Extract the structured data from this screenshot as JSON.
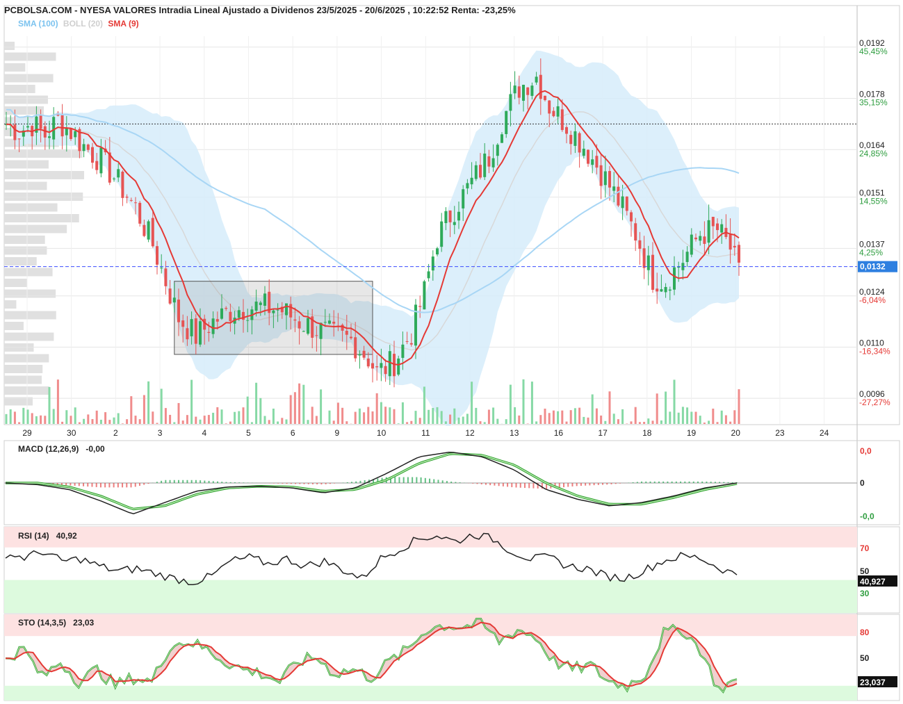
{
  "header": {
    "title": "PCBOLSA.COM - NYESA VALORES Intradia Lineal Ajustado a Dividenos 23/5/2025 - 20/6/2025 , 10:22:52 Renta: -23,25%",
    "legend": [
      {
        "label": "SMA (100)",
        "color": "#9fd2f2"
      },
      {
        "label": "BOLL (20)",
        "color": "#d7d7d7"
      },
      {
        "label": "SMA (9)",
        "color": "#e53935"
      }
    ]
  },
  "colors": {
    "up": "#2eaa5a",
    "down": "#e65454",
    "sma9": "#e53935",
    "sma100": "#a8d6f5",
    "boll_fill": "#d6ecfa",
    "current_price_line": "#3a4bff",
    "grid": "#e5e5e5",
    "gain": "#2e9d3f",
    "loss": "#e53935"
  },
  "chart_data": [
    {
      "type": "candlestick",
      "name": "price",
      "x_ticks": [
        "29",
        "30",
        "2",
        "3",
        "4",
        "5",
        "6",
        "9",
        "10",
        "11",
        "12",
        "13",
        "16",
        "17",
        "18",
        "19",
        "20",
        "23",
        "24"
      ],
      "y_ticks": [
        {
          "price": "0,0192",
          "pct": "45,45%"
        },
        {
          "price": "0,0178",
          "pct": "35,15%"
        },
        {
          "price": "0,0164",
          "pct": "24,85%"
        },
        {
          "price": "0,0151",
          "pct": "14,55%"
        },
        {
          "price": "0,0137",
          "pct": "4,25%"
        },
        {
          "price": "0,0124",
          "pct": "-6,04%"
        },
        {
          "price": "0,0110",
          "pct": "-16,34%"
        },
        {
          "price": "0,0096",
          "pct": "-27,27%"
        }
      ],
      "ylim": [
        0.0089,
        0.0195
      ],
      "current_price": "0,0132",
      "reference_price": 0.0171,
      "path_points": [
        [
          0,
          0.0171
        ],
        [
          3,
          0.0169
        ],
        [
          6,
          0.0171
        ],
        [
          9,
          0.0168
        ],
        [
          12,
          0.0172
        ],
        [
          15,
          0.0169
        ],
        [
          18,
          0.0165
        ],
        [
          22,
          0.0161
        ],
        [
          26,
          0.0155
        ],
        [
          30,
          0.0148
        ],
        [
          34,
          0.0138
        ],
        [
          37,
          0.0128
        ],
        [
          40,
          0.0118
        ],
        [
          44,
          0.0113
        ],
        [
          48,
          0.0117
        ],
        [
          52,
          0.012
        ],
        [
          56,
          0.0121
        ],
        [
          60,
          0.0121
        ],
        [
          64,
          0.012
        ],
        [
          68,
          0.0117
        ],
        [
          72,
          0.0115
        ],
        [
          76,
          0.0113
        ],
        [
          80,
          0.0112
        ],
        [
          84,
          0.0107
        ],
        [
          86,
          0.0103
        ],
        [
          90,
          0.0106
        ],
        [
          94,
          0.0114
        ],
        [
          97,
          0.0125
        ],
        [
          100,
          0.014
        ],
        [
          104,
          0.0148
        ],
        [
          108,
          0.0155
        ],
        [
          112,
          0.0162
        ],
        [
          115,
          0.0172
        ],
        [
          119,
          0.0181
        ],
        [
          123,
          0.0184
        ],
        [
          126,
          0.0176
        ],
        [
          130,
          0.0171
        ],
        [
          134,
          0.0165
        ],
        [
          138,
          0.0158
        ],
        [
          142,
          0.015
        ],
        [
          146,
          0.0141
        ],
        [
          150,
          0.0129
        ],
        [
          153,
          0.0128
        ],
        [
          157,
          0.0134
        ],
        [
          161,
          0.0141
        ],
        [
          165,
          0.0142
        ],
        [
          168,
          0.0137
        ],
        [
          170,
          0.013
        ]
      ],
      "n_bars": 171,
      "overlays": [
        "SMA (100)",
        "BOLL (20)",
        "SMA (9)"
      ],
      "highlight_box": {
        "from_bar": 39,
        "to_bar": 85,
        "price_hi": 0.0128,
        "price_lo": 0.0108
      }
    },
    {
      "type": "line",
      "name": "MACD (12,26,9)",
      "label": "MACD (12,26,9)",
      "value": "-0,00",
      "y_ticks": [
        "0,0",
        "0",
        "-0,0"
      ],
      "macd": [
        0.0,
        -0.05,
        -0.2,
        -0.55,
        -0.95,
        -0.6,
        -0.25,
        -0.12,
        -0.1,
        -0.15,
        -0.3,
        -0.15,
        0.3,
        0.8,
        0.95,
        0.8,
        0.4,
        -0.2,
        -0.5,
        -0.7,
        -0.6,
        -0.4,
        -0.15,
        0.0
      ],
      "signal": [
        0.0,
        0.0,
        -0.12,
        -0.4,
        -0.8,
        -0.7,
        -0.35,
        -0.15,
        -0.1,
        -0.12,
        -0.25,
        -0.2,
        0.1,
        0.6,
        0.9,
        0.85,
        0.55,
        0.0,
        -0.4,
        -0.65,
        -0.65,
        -0.45,
        -0.2,
        -0.02
      ]
    },
    {
      "type": "line",
      "name": "RSI (14)",
      "label": "RSI (14)",
      "value": "40,92",
      "current": "40,927",
      "y_ticks": [
        "70",
        "50",
        "30"
      ],
      "values": [
        58,
        55,
        60,
        52,
        54,
        48,
        44,
        46,
        42,
        38,
        35,
        40,
        52,
        55,
        50,
        54,
        48,
        52,
        45,
        38,
        54,
        62,
        70,
        73,
        68,
        74,
        70,
        60,
        54,
        55,
        48,
        46,
        40,
        38,
        44,
        52,
        56,
        55,
        47,
        40.92
      ]
    },
    {
      "type": "line",
      "name": "STO (14,3,5)",
      "label": "STO (14,3,5)",
      "value": "23,03",
      "current": "23,037",
      "y_ticks": [
        "80",
        "50"
      ],
      "k": [
        50,
        60,
        25,
        45,
        20,
        35,
        15,
        25,
        20,
        65,
        70,
        60,
        45,
        35,
        30,
        20,
        45,
        50,
        30,
        35,
        25,
        45,
        60,
        85,
        90,
        88,
        92,
        70,
        85,
        75,
        45,
        35,
        40,
        20,
        15,
        30,
        80,
        85,
        60,
        10,
        23
      ]
    }
  ]
}
